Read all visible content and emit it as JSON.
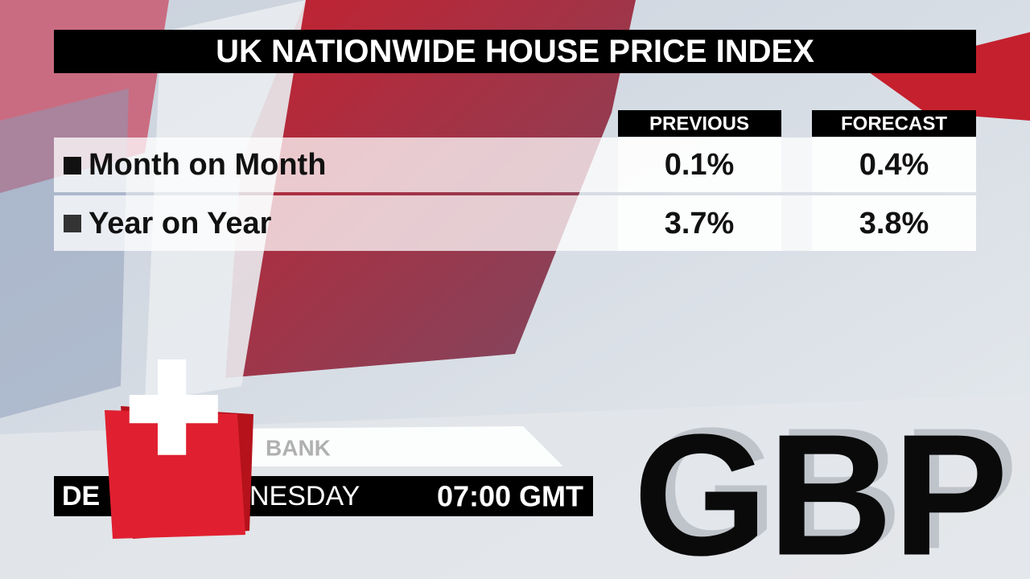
{
  "header": {
    "title": "UK NATIONWIDE HOUSE PRICE INDEX"
  },
  "table": {
    "columns": [
      "PREVIOUS",
      "FORECAST"
    ],
    "rows": [
      [
        "Month on Month",
        "0.1%",
        "0.4%"
      ],
      [
        "Year on Year",
        "3.7%",
        "3.8%"
      ]
    ]
  },
  "footer": {
    "ticker": "BANK",
    "date_start": "DE",
    "date_end": "NESDAY",
    "time": "07:00 GMT",
    "currency": "GBP"
  }
}
